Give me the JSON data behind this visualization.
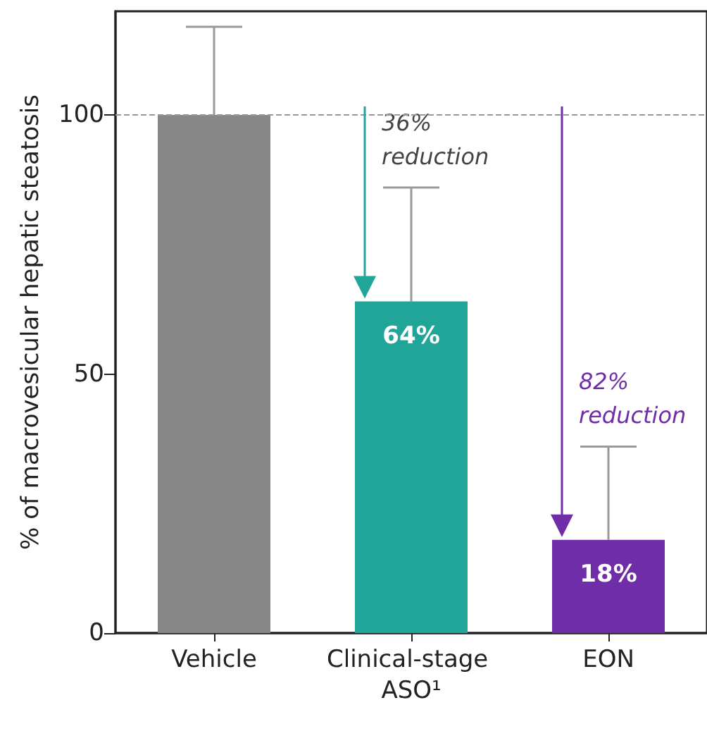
{
  "chart_data": {
    "type": "bar",
    "ylabel": "% of macrovesicular hepatic steatosis",
    "categories": [
      "Vehicle",
      "Clinical-stage ASO¹",
      "EON"
    ],
    "values": [
      100,
      64,
      18
    ],
    "colors": [
      "#878787",
      "#22a599",
      "#6f2da8"
    ],
    "errors": [
      [
        100,
        117
      ],
      [
        64,
        86
      ],
      [
        18,
        36
      ]
    ],
    "value_labels": [
      null,
      "64%",
      "18%"
    ],
    "ylim": [
      0,
      120
    ],
    "yticks": [
      0,
      50,
      100
    ],
    "ref_lines": [
      {
        "axis": "y",
        "value": 100,
        "color": "#999999",
        "line_style": "dashed"
      }
    ],
    "annotations": [
      "36%\nreduction",
      "82%\nreduction"
    ],
    "grid": false
  }
}
